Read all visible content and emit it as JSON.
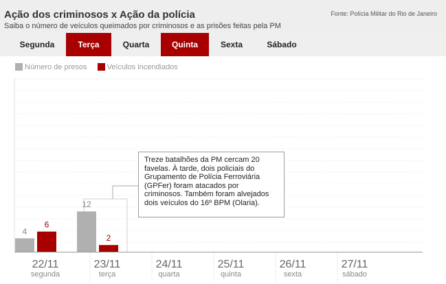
{
  "header": {
    "title": "Ação dos criminosos x Ação da polícia",
    "subtitle": "Saiba o número de veículos queimados por criminosos e as prisões feitas pela PM",
    "source": "Fonte: Polícia Militar do Rio de Janeiro"
  },
  "tabs": [
    {
      "label": "Segunda",
      "active": false
    },
    {
      "label": "Terça",
      "active": true
    },
    {
      "label": "Quarta",
      "active": false
    },
    {
      "label": "Quinta",
      "active": true
    },
    {
      "label": "Sexta",
      "active": false
    },
    {
      "label": "Sábado",
      "active": false
    }
  ],
  "popup": {
    "text": "Treze batalhões da PM cercam 20 favelas. À tarde, dois policiais do Grupamento de Polícia Ferroviária (GPFer) foram atacados por criminosos. Também foram alvejados dois veículos do 16º BPM (Olaria)."
  },
  "colors": {
    "presos": "#b0b0b0",
    "veiculos": "#a80000",
    "active_tab": "#a80000"
  },
  "chart_data": {
    "type": "bar",
    "categories": [
      "22/11",
      "23/11",
      "24/11",
      "25/11",
      "26/11",
      "27/11"
    ],
    "day_names": [
      "segunda",
      "terça",
      "quarta",
      "quinta",
      "sexta",
      "sábado"
    ],
    "series": [
      {
        "name": "Número de presos",
        "values": [
          4,
          12,
          null,
          null,
          null,
          null
        ]
      },
      {
        "name": "Veículos incendiados",
        "values": [
          6,
          2,
          null,
          null,
          null,
          null
        ]
      }
    ],
    "legend": "top-left",
    "grid": true
  }
}
